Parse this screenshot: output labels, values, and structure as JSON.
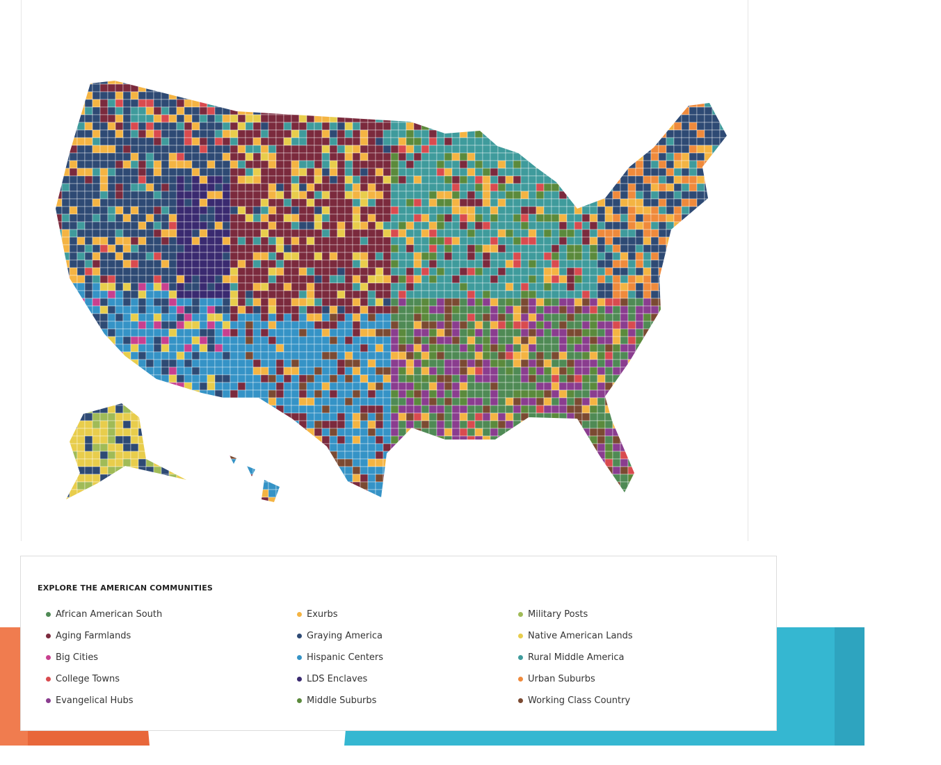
{
  "legend": {
    "title": "EXPLORE THE AMERICAN COMMUNITIES",
    "items": [
      {
        "label": "African American South",
        "color": "#4f8a55"
      },
      {
        "label": "Aging Farmlands",
        "color": "#7b2a3d"
      },
      {
        "label": "Big Cities",
        "color": "#c8408f"
      },
      {
        "label": "College Towns",
        "color": "#d94b4f"
      },
      {
        "label": "Evangelical Hubs",
        "color": "#8a3d8f"
      },
      {
        "label": "Exurbs",
        "color": "#f4b443"
      },
      {
        "label": "Graying America",
        "color": "#2e4a74"
      },
      {
        "label": "Hispanic Centers",
        "color": "#3593c6"
      },
      {
        "label": "LDS Enclaves",
        "color": "#3a2a70"
      },
      {
        "label": "Middle Suburbs",
        "color": "#5b8a3c"
      },
      {
        "label": "Military Posts",
        "color": "#a0bb57"
      },
      {
        "label": "Native American Lands",
        "color": "#e8cd4c"
      },
      {
        "label": "Rural Middle America",
        "color": "#3f9b9c"
      },
      {
        "label": "Urban Suburbs",
        "color": "#ef8a3c"
      },
      {
        "label": "Working Class Country",
        "color": "#7b4a32"
      }
    ]
  }
}
